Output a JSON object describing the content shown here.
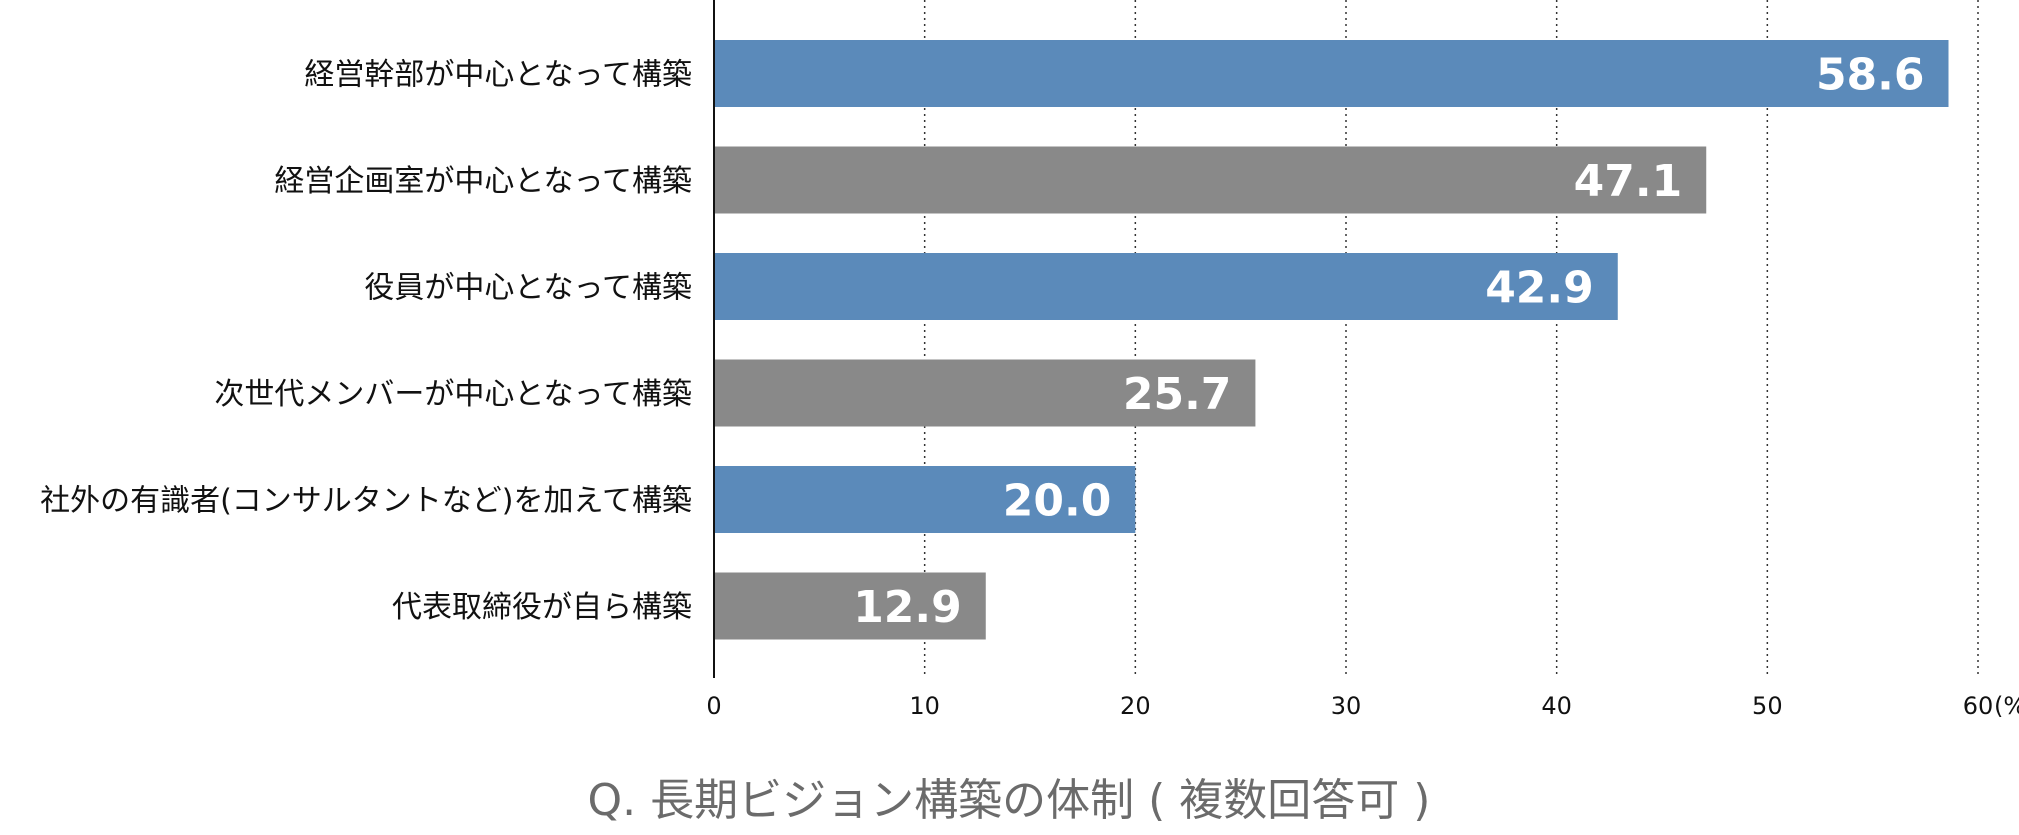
{
  "chart_data": {
    "type": "bar",
    "orientation": "horizontal",
    "title": "Q. 長期ビジョン構築の体制 ( 複数回答可 )",
    "categories": [
      "経営幹部が中心となって構築",
      "経営企画室が中心となって構築",
      "役員が中心となって構築",
      "次世代メンバーが中心となって構築",
      "社外の有識者(コンサルタントなど)を加えて構築",
      "代表取締役が自ら構築"
    ],
    "values": [
      58.6,
      47.1,
      42.9,
      25.7,
      20.0,
      12.9
    ],
    "value_labels": [
      "58.6",
      "47.1",
      "42.9",
      "25.7",
      "20.0",
      "12.9"
    ],
    "bar_colors": [
      "#5b8aba",
      "#898989",
      "#5b8aba",
      "#898989",
      "#5b8aba",
      "#898989"
    ],
    "xlim": [
      0,
      60
    ],
    "xticks": [
      0,
      10,
      20,
      30,
      40,
      50,
      60
    ],
    "xtick_labels": [
      "0",
      "10",
      "20",
      "30",
      "40",
      "50",
      "60"
    ],
    "unit_label": "(%)",
    "grid": "vertical-dotted",
    "legend": "none"
  }
}
